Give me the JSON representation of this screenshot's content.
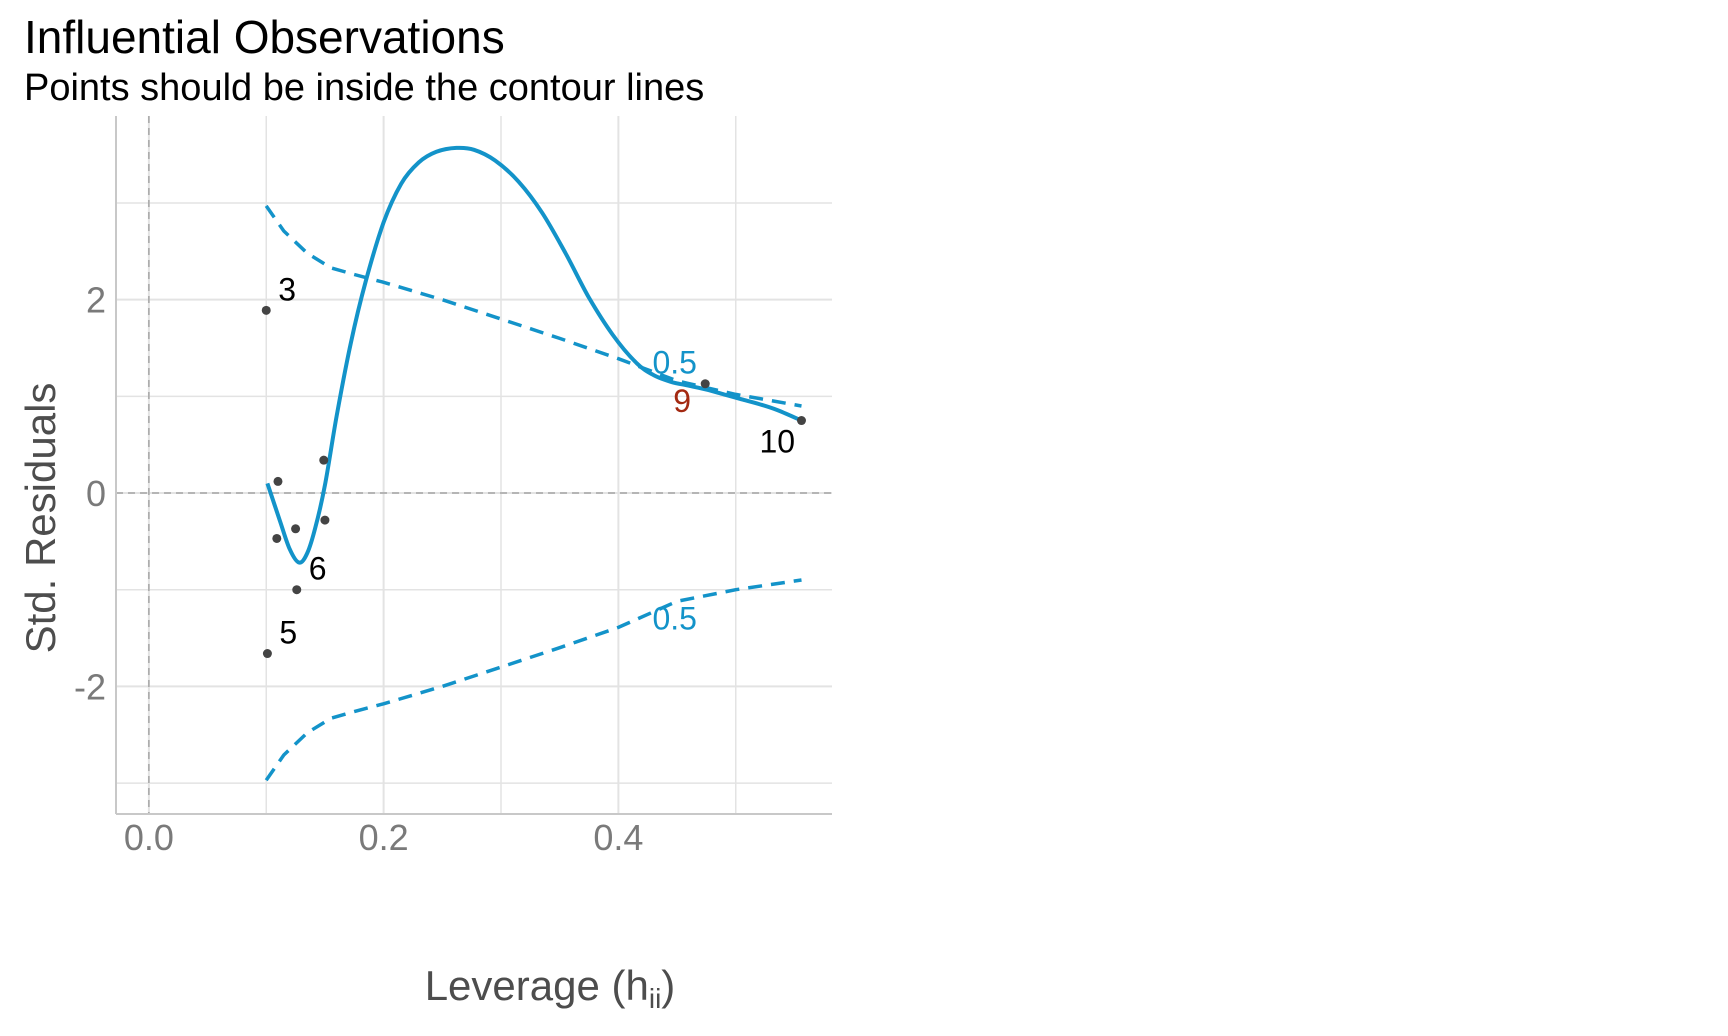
{
  "title": "Influential Observations",
  "subtitle": "Points should be inside the contour lines",
  "chart_data": {
    "type": "scatter",
    "xlabel": "Leverage (h",
    "xlabel_sub": "ii",
    "xlabel_close": ")",
    "ylabel": "Std. Residuals",
    "xlim": [
      -0.028,
      0.582
    ],
    "ylim": [
      -3.32,
      3.9
    ],
    "x_ticks": [
      0.0,
      0.2,
      0.4
    ],
    "x_tick_labels": [
      "0.0",
      "0.2",
      "0.4"
    ],
    "y_ticks": [
      2,
      0,
      -2
    ],
    "y_tick_labels": [
      "2",
      "0",
      "-2"
    ],
    "x_minor_grid": [
      0.1,
      0.3,
      0.5
    ],
    "y_minor_grid": [
      3,
      1,
      -1,
      -3
    ],
    "points": [
      {
        "x": 0.1,
        "y": 1.89,
        "label": "3"
      },
      {
        "x": 0.11,
        "y": 0.12,
        "label": ""
      },
      {
        "x": 0.109,
        "y": -0.47,
        "label": ""
      },
      {
        "x": 0.125,
        "y": -0.37,
        "label": ""
      },
      {
        "x": 0.149,
        "y": 0.34,
        "label": ""
      },
      {
        "x": 0.15,
        "y": -0.28,
        "label": ""
      },
      {
        "x": 0.126,
        "y": -1.0,
        "label": "6"
      },
      {
        "x": 0.101,
        "y": -1.66,
        "label": "5"
      },
      {
        "x": 0.474,
        "y": 1.13,
        "label": "9"
      },
      {
        "x": 0.556,
        "y": 0.75,
        "label": "10"
      }
    ],
    "loess_curve": {
      "x": [
        0.101,
        0.112,
        0.12,
        0.128,
        0.135,
        0.142,
        0.15,
        0.16,
        0.172,
        0.185,
        0.2,
        0.215,
        0.23,
        0.245,
        0.262,
        0.277,
        0.295,
        0.315,
        0.335,
        0.355,
        0.375,
        0.395,
        0.415,
        0.43,
        0.445,
        0.46,
        0.475,
        0.49,
        0.505,
        0.52,
        0.535,
        0.556
      ],
      "y": [
        0.1,
        -0.3,
        -0.58,
        -0.72,
        -0.62,
        -0.35,
        0.08,
        0.8,
        1.55,
        2.2,
        2.8,
        3.2,
        3.42,
        3.53,
        3.57,
        3.55,
        3.44,
        3.22,
        2.9,
        2.48,
        2.02,
        1.64,
        1.35,
        1.22,
        1.15,
        1.11,
        1.07,
        1.02,
        0.97,
        0.92,
        0.86,
        0.75
      ]
    },
    "cook_contour_upper": {
      "label": "0.5",
      "x": [
        0.1,
        0.115,
        0.135,
        0.155,
        0.175,
        0.2,
        0.25,
        0.3,
        0.35,
        0.4,
        0.45,
        0.5,
        0.556
      ],
      "y": [
        2.97,
        2.71,
        2.48,
        2.33,
        2.26,
        2.18,
        2.0,
        1.8,
        1.6,
        1.39,
        1.16,
        1.02,
        0.9
      ]
    },
    "cook_contour_lower": {
      "label": "0.5",
      "x": [
        0.1,
        0.115,
        0.135,
        0.155,
        0.175,
        0.2,
        0.25,
        0.3,
        0.35,
        0.4,
        0.45,
        0.5,
        0.556
      ],
      "y": [
        -2.97,
        -2.71,
        -2.48,
        -2.33,
        -2.26,
        -2.18,
        -2.0,
        -1.8,
        -1.6,
        -1.39,
        -1.12,
        -1.0,
        -0.9
      ]
    },
    "colors": {
      "curve": "#1393c9",
      "contour": "#1393c9",
      "contour_label": "#1393c9",
      "points": "#444444",
      "point_label": "#000000",
      "highlight_label": "#a32911",
      "grid": "#e3e3e3",
      "axis_line": "#c8c8c8",
      "reference_line": "#a6a6a6"
    },
    "highlight": "9"
  }
}
